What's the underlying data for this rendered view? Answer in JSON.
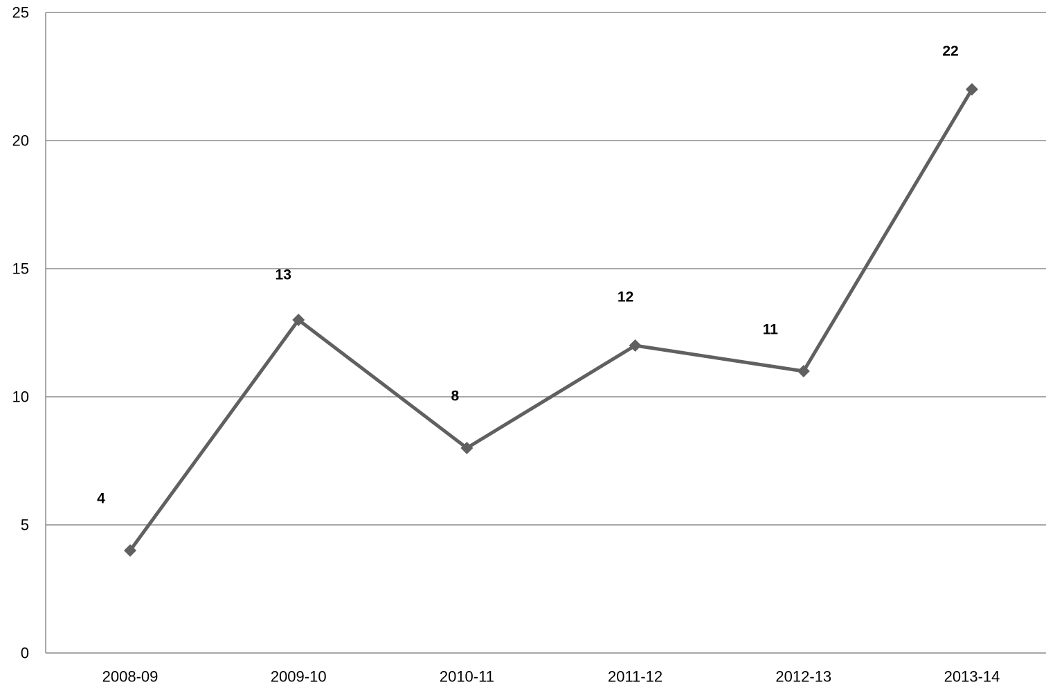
{
  "chart_data": {
    "type": "line",
    "title": "",
    "xlabel": "",
    "ylabel": "",
    "categories": [
      "2008-09",
      "2009-10",
      "2010-11",
      "2011-12",
      "2012-13",
      "2013-14"
    ],
    "series": [
      {
        "values": [
          4,
          13,
          8,
          12,
          11,
          22
        ],
        "color": "#606060",
        "marker": "diamond"
      }
    ],
    "data_labels": [
      "4",
      "13",
      "8",
      "12",
      "11",
      "22"
    ],
    "ylim": [
      0,
      25
    ],
    "yticks": [
      0,
      5,
      10,
      15,
      20,
      25
    ],
    "ytick_labels": [
      "0",
      "5",
      "10",
      "15",
      "20",
      "25"
    ],
    "grid": true,
    "gridline_color": "#8c8c8c",
    "legend": "none"
  }
}
